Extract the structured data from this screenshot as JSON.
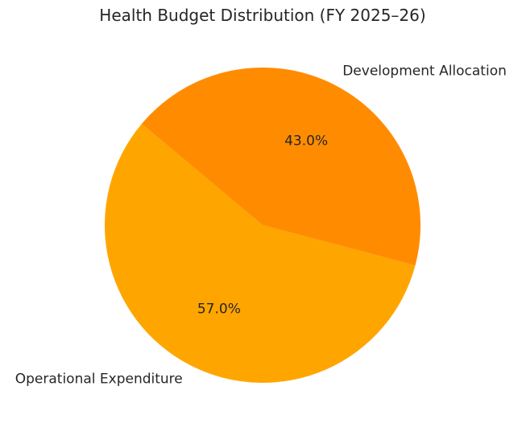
{
  "chart_data": {
    "type": "pie",
    "title": "Health Budget Distribution (FY 2025–26)",
    "slices": [
      {
        "label": "Operational Expenditure",
        "value": 57.0,
        "pct_label": "57.0%",
        "color": "#FFA500"
      },
      {
        "label": "Development Allocation",
        "value": 43.0,
        "pct_label": "43.0%",
        "color": "#FF8C00"
      }
    ]
  }
}
